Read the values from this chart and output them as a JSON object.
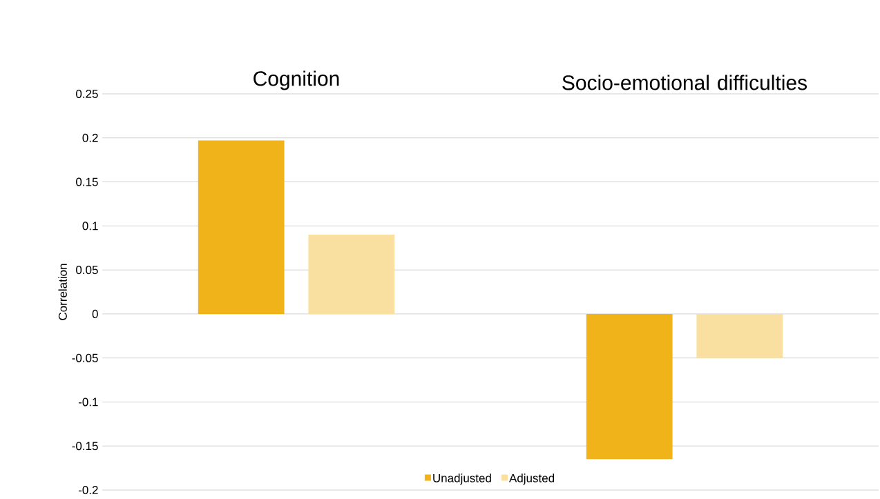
{
  "chart_data": {
    "type": "bar",
    "ylabel": "Correlation",
    "categories": [
      "Cognition",
      "Socio-emotional difficulties"
    ],
    "series": [
      {
        "name": "Unadjusted",
        "color": "#f0b41a",
        "values": [
          0.197,
          -0.165
        ]
      },
      {
        "name": "Adjusted",
        "color": "#f9e0a0",
        "values": [
          0.09,
          -0.05
        ]
      }
    ],
    "ylim": [
      -0.2,
      0.25
    ],
    "yticks": [
      -0.2,
      -0.15,
      -0.1,
      -0.05,
      0,
      0.05,
      0.1,
      0.15,
      0.2,
      0.25
    ],
    "grid": "y",
    "legend": "bottom"
  }
}
